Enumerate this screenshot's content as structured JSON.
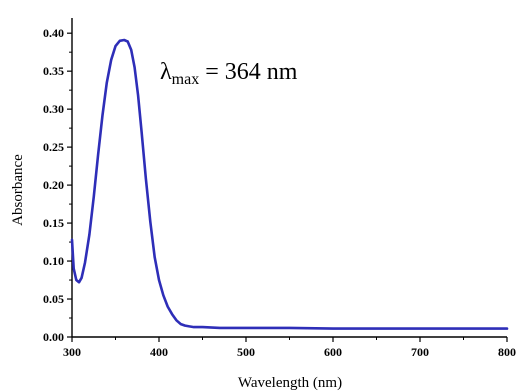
{
  "chart_data": {
    "type": "line",
    "xlabel": "Wavelength (nm)",
    "ylabel": "Absorbance",
    "xlim": [
      300,
      800
    ],
    "ylim": [
      0,
      0.42
    ],
    "x_ticks": [
      "300",
      "400",
      "500",
      "600",
      "700",
      "800"
    ],
    "y_ticks": [
      "0.00",
      "0.05",
      "0.10",
      "0.15",
      "0.20",
      "0.25",
      "0.30",
      "0.35",
      "0.40"
    ],
    "grid": false,
    "line_color": "#2e2eb8",
    "annotation": {
      "symbol": "λ",
      "subscript": "max",
      "text": " = 364 nm"
    },
    "series": [
      {
        "x": [
          300,
          302,
          305,
          308,
          311,
          315,
          320,
          325,
          330,
          335,
          340,
          345,
          350,
          355,
          360,
          364,
          368,
          372,
          376,
          380,
          385,
          390,
          395,
          400,
          405,
          410,
          415,
          420,
          425,
          430,
          435,
          440,
          450,
          470,
          500,
          550,
          600,
          650,
          700,
          750,
          800
        ],
        "y": [
          0.128,
          0.09,
          0.075,
          0.072,
          0.078,
          0.098,
          0.135,
          0.185,
          0.24,
          0.292,
          0.335,
          0.365,
          0.383,
          0.39,
          0.391,
          0.389,
          0.378,
          0.355,
          0.318,
          0.27,
          0.208,
          0.152,
          0.105,
          0.075,
          0.055,
          0.04,
          0.03,
          0.022,
          0.017,
          0.015,
          0.014,
          0.013,
          0.013,
          0.012,
          0.012,
          0.012,
          0.011,
          0.011,
          0.011,
          0.011,
          0.011
        ]
      }
    ]
  }
}
